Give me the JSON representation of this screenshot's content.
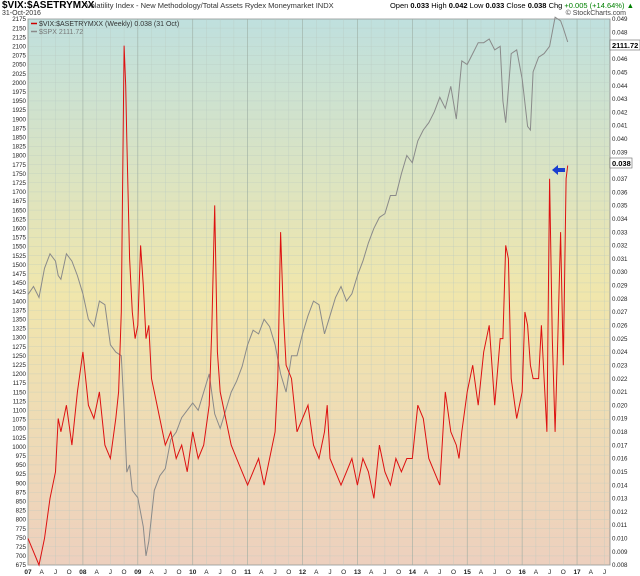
{
  "header": {
    "symbol": "$VIX:$ASETRYMXX",
    "description": "Volatility Index - New Methodology/Total Assets Rydex Moneymarket INDX",
    "date": "31-Oct-2016",
    "open_label": "Open",
    "open": "0.033",
    "high_label": "High",
    "high": "0.042",
    "low_label": "Low",
    "low": "0.033",
    "close_label": "Close",
    "close": "0.038",
    "chg_label": "Chg",
    "chg": "+0.005 (+14.64%)",
    "chg_arrow": "▲",
    "credit": "© StockCharts.com"
  },
  "legend": [
    {
      "label": "$VIX:$ASETRYMXX (Weekly) 0.038 (31 Oct)",
      "color": "#cc0000"
    },
    {
      "label": "$SPX 2111.72",
      "color": "#8a8a8a"
    }
  ],
  "value_tags": {
    "ratio": "0.038",
    "spx": "2111.72"
  },
  "colors": {
    "ratio_line": "#dd1111",
    "spx_line": "#8a8a8a",
    "arrow": "#1a3fcf",
    "bg_top": "#bfe0de",
    "bg_mid": "#f0e6ac",
    "bg_bottom": "#edd0be"
  },
  "chart_data": {
    "type": "line",
    "left_axis": {
      "min": 675,
      "max": 2175,
      "ticks": [
        675,
        700,
        725,
        750,
        775,
        800,
        825,
        850,
        875,
        900,
        925,
        950,
        975,
        1000,
        1025,
        1050,
        1075,
        1100,
        1125,
        1150,
        1175,
        1200,
        1225,
        1250,
        1275,
        1300,
        1325,
        1350,
        1375,
        1400,
        1425,
        1450,
        1475,
        1500,
        1525,
        1550,
        1575,
        1600,
        1625,
        1650,
        1675,
        1700,
        1725,
        1750,
        1775,
        1800,
        1825,
        1850,
        1875,
        1900,
        1925,
        1950,
        1975,
        2000,
        2025,
        2050,
        2075,
        2100,
        2125,
        2150,
        2175
      ]
    },
    "right_axis": {
      "min": 0.008,
      "max": 0.049,
      "ticks": [
        "0.008",
        "0.009",
        "0.010",
        "0.011",
        "0.012",
        "0.013",
        "0.014",
        "0.015",
        "0.016",
        "0.017",
        "0.018",
        "0.019",
        "0.020",
        "0.021",
        "0.022",
        "0.023",
        "0.024",
        "0.025",
        "0.026",
        "0.027",
        "0.028",
        "0.029",
        "0.030",
        "0.031",
        "0.032",
        "0.033",
        "0.034",
        "0.035",
        "0.036",
        "0.037",
        "0.038",
        "0.039",
        "0.040",
        "0.041",
        "0.042",
        "0.043",
        "0.044",
        "0.045",
        "0.046",
        "0.047",
        "0.048",
        "0.049"
      ]
    },
    "x_range": [
      2007.0,
      2017.6
    ],
    "x_ticks": [
      {
        "label": "07",
        "t": 2007.0,
        "year": true
      },
      {
        "label": "A",
        "t": 2007.25
      },
      {
        "label": "J",
        "t": 2007.5
      },
      {
        "label": "O",
        "t": 2007.75
      },
      {
        "label": "08",
        "t": 2008.0,
        "year": true
      },
      {
        "label": "A",
        "t": 2008.25
      },
      {
        "label": "J",
        "t": 2008.5
      },
      {
        "label": "O",
        "t": 2008.75
      },
      {
        "label": "09",
        "t": 2009.0,
        "year": true
      },
      {
        "label": "A",
        "t": 2009.25
      },
      {
        "label": "J",
        "t": 2009.5
      },
      {
        "label": "O",
        "t": 2009.75
      },
      {
        "label": "10",
        "t": 2010.0,
        "year": true
      },
      {
        "label": "A",
        "t": 2010.25
      },
      {
        "label": "J",
        "t": 2010.5
      },
      {
        "label": "O",
        "t": 2010.75
      },
      {
        "label": "11",
        "t": 2011.0,
        "year": true
      },
      {
        "label": "A",
        "t": 2011.25
      },
      {
        "label": "J",
        "t": 2011.5
      },
      {
        "label": "O",
        "t": 2011.75
      },
      {
        "label": "12",
        "t": 2012.0,
        "year": true
      },
      {
        "label": "A",
        "t": 2012.25
      },
      {
        "label": "J",
        "t": 2012.5
      },
      {
        "label": "O",
        "t": 2012.75
      },
      {
        "label": "13",
        "t": 2013.0,
        "year": true
      },
      {
        "label": "A",
        "t": 2013.25
      },
      {
        "label": "J",
        "t": 2013.5
      },
      {
        "label": "O",
        "t": 2013.75
      },
      {
        "label": "14",
        "t": 2014.0,
        "year": true
      },
      {
        "label": "A",
        "t": 2014.25
      },
      {
        "label": "J",
        "t": 2014.5
      },
      {
        "label": "O",
        "t": 2014.75
      },
      {
        "label": "15",
        "t": 2015.0,
        "year": true
      },
      {
        "label": "A",
        "t": 2015.25
      },
      {
        "label": "J",
        "t": 2015.5
      },
      {
        "label": "O",
        "t": 2015.75
      },
      {
        "label": "16",
        "t": 2016.0,
        "year": true
      },
      {
        "label": "A",
        "t": 2016.25
      },
      {
        "label": "J",
        "t": 2016.5
      },
      {
        "label": "O",
        "t": 2016.75
      },
      {
        "label": "17",
        "t": 2017.0,
        "year": true
      },
      {
        "label": "A",
        "t": 2017.25
      },
      {
        "label": "J",
        "t": 2017.5
      },
      {
        "label": "O",
        "t": 2017.75
      }
    ],
    "series": [
      {
        "name": "$VIX:$ASETRYMXX (Weekly)",
        "axis": "right",
        "x": [
          2007.0,
          2007.1,
          2007.2,
          2007.3,
          2007.4,
          2007.5,
          2007.55,
          2007.6,
          2007.7,
          2007.8,
          2007.9,
          2008.0,
          2008.1,
          2008.2,
          2008.3,
          2008.4,
          2008.5,
          2008.6,
          2008.65,
          2008.7,
          2008.72,
          2008.75,
          2008.78,
          2008.8,
          2008.85,
          2008.9,
          2008.95,
          2009.0,
          2009.05,
          2009.1,
          2009.15,
          2009.2,
          2009.25,
          2009.3,
          2009.4,
          2009.5,
          2009.6,
          2009.7,
          2009.8,
          2009.9,
          2010.0,
          2010.1,
          2010.2,
          2010.3,
          2010.35,
          2010.4,
          2010.45,
          2010.5,
          2010.6,
          2010.7,
          2010.8,
          2010.9,
          2011.0,
          2011.1,
          2011.2,
          2011.3,
          2011.4,
          2011.5,
          2011.55,
          2011.6,
          2011.65,
          2011.7,
          2011.8,
          2011.9,
          2012.0,
          2012.1,
          2012.2,
          2012.3,
          2012.4,
          2012.45,
          2012.5,
          2012.6,
          2012.7,
          2012.8,
          2012.9,
          2013.0,
          2013.1,
          2013.2,
          2013.3,
          2013.4,
          2013.5,
          2013.6,
          2013.7,
          2013.8,
          2013.9,
          2014.0,
          2014.1,
          2014.2,
          2014.3,
          2014.4,
          2014.5,
          2014.6,
          2014.7,
          2014.8,
          2014.85,
          2014.9,
          2015.0,
          2015.1,
          2015.2,
          2015.3,
          2015.4,
          2015.5,
          2015.6,
          2015.65,
          2015.7,
          2015.75,
          2015.8,
          2015.9,
          2016.0,
          2016.05,
          2016.1,
          2016.15,
          2016.2,
          2016.3,
          2016.35,
          2016.4,
          2016.45,
          2016.5,
          2016.55,
          2016.6,
          2016.65,
          2016.7,
          2016.75,
          2016.8,
          2016.83
        ],
        "values": [
          0.01,
          0.009,
          0.008,
          0.01,
          0.013,
          0.015,
          0.019,
          0.018,
          0.02,
          0.017,
          0.021,
          0.024,
          0.02,
          0.019,
          0.021,
          0.017,
          0.016,
          0.019,
          0.021,
          0.027,
          0.035,
          0.047,
          0.044,
          0.04,
          0.031,
          0.027,
          0.025,
          0.026,
          0.032,
          0.029,
          0.025,
          0.026,
          0.022,
          0.021,
          0.019,
          0.017,
          0.018,
          0.016,
          0.017,
          0.015,
          0.018,
          0.016,
          0.017,
          0.02,
          0.026,
          0.035,
          0.024,
          0.021,
          0.019,
          0.017,
          0.016,
          0.015,
          0.014,
          0.015,
          0.016,
          0.014,
          0.016,
          0.018,
          0.022,
          0.033,
          0.027,
          0.023,
          0.022,
          0.018,
          0.019,
          0.02,
          0.017,
          0.016,
          0.018,
          0.02,
          0.016,
          0.015,
          0.014,
          0.015,
          0.016,
          0.014,
          0.016,
          0.015,
          0.013,
          0.017,
          0.015,
          0.014,
          0.016,
          0.015,
          0.016,
          0.016,
          0.02,
          0.019,
          0.016,
          0.015,
          0.014,
          0.021,
          0.018,
          0.017,
          0.016,
          0.018,
          0.021,
          0.023,
          0.02,
          0.024,
          0.026,
          0.02,
          0.025,
          0.025,
          0.032,
          0.031,
          0.022,
          0.019,
          0.021,
          0.027,
          0.026,
          0.023,
          0.022,
          0.022,
          0.026,
          0.022,
          0.018,
          0.037,
          0.025,
          0.018,
          0.025,
          0.033,
          0.023,
          0.037,
          0.038
        ]
      },
      {
        "name": "$SPX",
        "axis": "left",
        "x": [
          2007.0,
          2007.1,
          2007.2,
          2007.3,
          2007.4,
          2007.5,
          2007.55,
          2007.6,
          2007.7,
          2007.8,
          2007.9,
          2008.0,
          2008.1,
          2008.2,
          2008.3,
          2008.4,
          2008.5,
          2008.6,
          2008.7,
          2008.75,
          2008.8,
          2008.85,
          2008.9,
          2009.0,
          2009.1,
          2009.15,
          2009.2,
          2009.3,
          2009.4,
          2009.5,
          2009.6,
          2009.7,
          2009.8,
          2009.9,
          2010.0,
          2010.1,
          2010.2,
          2010.3,
          2010.4,
          2010.5,
          2010.6,
          2010.7,
          2010.8,
          2010.9,
          2011.0,
          2011.1,
          2011.2,
          2011.3,
          2011.4,
          2011.5,
          2011.6,
          2011.7,
          2011.8,
          2011.9,
          2012.0,
          2012.1,
          2012.2,
          2012.3,
          2012.4,
          2012.5,
          2012.6,
          2012.7,
          2012.8,
          2012.9,
          2013.0,
          2013.1,
          2013.2,
          2013.3,
          2013.4,
          2013.5,
          2013.6,
          2013.7,
          2013.8,
          2013.9,
          2014.0,
          2014.1,
          2014.2,
          2014.3,
          2014.4,
          2014.5,
          2014.6,
          2014.7,
          2014.8,
          2014.9,
          2015.0,
          2015.1,
          2015.2,
          2015.3,
          2015.4,
          2015.5,
          2015.6,
          2015.65,
          2015.7,
          2015.8,
          2015.9,
          2016.0,
          2016.1,
          2016.15,
          2016.2,
          2016.3,
          2016.4,
          2016.5,
          2016.6,
          2016.7,
          2016.75,
          2016.83
        ],
        "values": [
          1418,
          1440,
          1410,
          1490,
          1530,
          1510,
          1470,
          1460,
          1530,
          1510,
          1470,
          1420,
          1350,
          1330,
          1400,
          1390,
          1280,
          1260,
          1250,
          1100,
          930,
          950,
          880,
          860,
          780,
          700,
          740,
          880,
          920,
          940,
          1020,
          1040,
          1080,
          1100,
          1120,
          1100,
          1150,
          1200,
          1090,
          1050,
          1100,
          1150,
          1180,
          1220,
          1280,
          1320,
          1310,
          1350,
          1330,
          1280,
          1200,
          1150,
          1250,
          1250,
          1310,
          1360,
          1400,
          1390,
          1310,
          1360,
          1410,
          1440,
          1400,
          1420,
          1470,
          1510,
          1560,
          1600,
          1630,
          1640,
          1690,
          1690,
          1750,
          1800,
          1780,
          1840,
          1870,
          1890,
          1920,
          1960,
          1930,
          1990,
          1900,
          2060,
          2050,
          2080,
          2110,
          2110,
          2120,
          2090,
          2100,
          1950,
          1890,
          2080,
          2090,
          2010,
          1880,
          1870,
          2030,
          2070,
          2080,
          2100,
          2180,
          2170,
          2150,
          2111.72
        ]
      }
    ]
  }
}
